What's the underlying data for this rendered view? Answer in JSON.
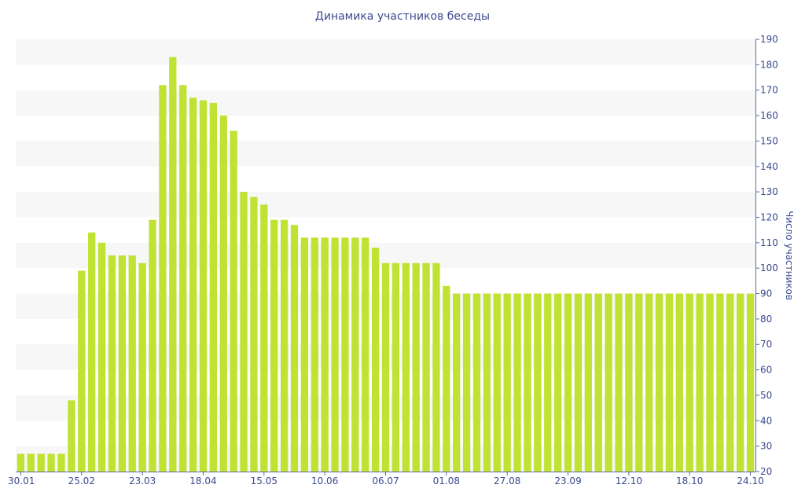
{
  "chart_data": {
    "type": "bar",
    "title": "Динамика участников беседы",
    "ylabel": "Число участников",
    "xlabel": "",
    "ylim": [
      20,
      190
    ],
    "y_ticks": [
      20,
      30,
      40,
      50,
      60,
      70,
      80,
      90,
      100,
      110,
      120,
      130,
      140,
      150,
      160,
      170,
      180,
      190
    ],
    "x_tick_labels": [
      {
        "index": 0,
        "label": "30.01"
      },
      {
        "index": 6,
        "label": "25.02"
      },
      {
        "index": 12,
        "label": "23.03"
      },
      {
        "index": 18,
        "label": "18.04"
      },
      {
        "index": 24,
        "label": "15.05"
      },
      {
        "index": 30,
        "label": "10.06"
      },
      {
        "index": 36,
        "label": "06.07"
      },
      {
        "index": 42,
        "label": "01.08"
      },
      {
        "index": 48,
        "label": "27.08"
      },
      {
        "index": 54,
        "label": "23.09"
      },
      {
        "index": 60,
        "label": "12.10"
      },
      {
        "index": 66,
        "label": "18.10"
      },
      {
        "index": 72,
        "label": "24.10"
      }
    ],
    "values": [
      27,
      27,
      27,
      27,
      27,
      48,
      99,
      114,
      110,
      105,
      105,
      105,
      102,
      119,
      172,
      183,
      172,
      167,
      166,
      165,
      160,
      154,
      130,
      128,
      125,
      119,
      119,
      117,
      112,
      112,
      112,
      112,
      112,
      112,
      112,
      108,
      102,
      102,
      102,
      102,
      102,
      102,
      93,
      90,
      90,
      90,
      90,
      90,
      90,
      90,
      90,
      90,
      90,
      90,
      90,
      90,
      90,
      90,
      90,
      90,
      90,
      90,
      90,
      90,
      90,
      90,
      90,
      90,
      90,
      90,
      90,
      90,
      90
    ],
    "bar_color": "#bfe233",
    "band_color": "#f7f7f7",
    "text_color": "#3b4a8e",
    "axis_color": "#5a6aa0",
    "grid": "alternating bands",
    "y_axis_side": "right"
  }
}
